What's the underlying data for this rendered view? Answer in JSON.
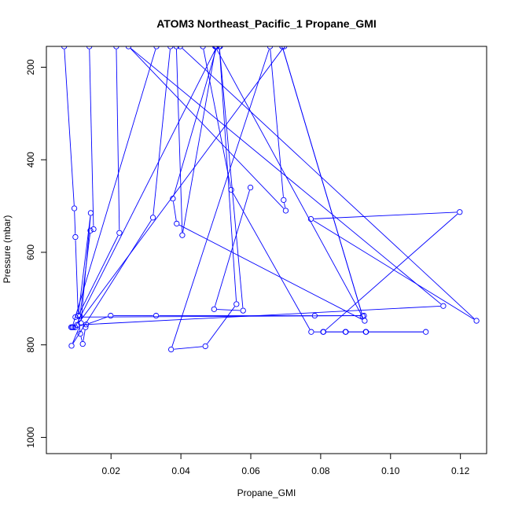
{
  "chart_data": {
    "type": "line",
    "title": "ATOM3 Northeast_Pacific_1 Propane_GMI",
    "xlabel": "Propane_GMI",
    "ylabel": "Pressure (mbar)",
    "xlim": [
      0.0015,
      0.1275
    ],
    "ylim": [
      1035,
      155
    ],
    "y_reversed": true,
    "xticks": [
      0.02,
      0.04,
      0.06,
      0.08,
      0.1,
      0.12
    ],
    "xtick_labels": [
      "0.02",
      "0.04",
      "0.06",
      "0.08",
      "0.10",
      "0.12"
    ],
    "yticks": [
      200,
      400,
      600,
      800,
      1000
    ],
    "ytick_labels": [
      "200",
      "400",
      "600",
      "800",
      "1000"
    ],
    "grid": false,
    "legend": "none",
    "series_color": "#0000ff",
    "series": [
      {
        "x": [
          0.0066,
          0.0095,
          0.0098,
          0.0106,
          0.0112,
          0.0119,
          0.0127,
          0.0129,
          0.0199,
          0.0329,
          0.0783,
          0.0924,
          0.0098,
          0.0111,
          0.0141,
          0.015,
          0.0138
        ],
        "y": [
          155,
          505,
          567,
          737,
          776,
          798,
          762,
          756,
          737,
          737,
          737,
          737,
          740,
          738,
          553,
          550,
          155
        ]
      },
      {
        "x": [
          0.0215,
          0.0224,
          0.0106,
          0.0142,
          0.0114,
          0.0087,
          0.032,
          0.037
        ],
        "y": [
          155,
          558,
          737,
          515,
          753,
          802,
          525,
          155
        ]
      },
      {
        "x": [
          0.033,
          0.0089,
          0.0086,
          0.0092,
          0.0097,
          0.0503,
          0.0377,
          0.0388,
          0.0926,
          0.0498,
          0.0387,
          0.0404,
          0.05
        ],
        "y": [
          155,
          762,
          762,
          762,
          762,
          155,
          484,
          538,
          748,
          155,
          155,
          563,
          155
        ]
      },
      {
        "x": [
          0.0463,
          0.0544,
          0.0773,
          0.0807,
          0.0872,
          0.0929,
          0.1101,
          0.093,
          0.0871,
          0.0808,
          0.1198,
          0.0772,
          0.1246,
          0.0398,
          0.05,
          0.0512
        ],
        "y": [
          155,
          465,
          772,
          772,
          772,
          772,
          772,
          772,
          772,
          772,
          513,
          528,
          748,
          155,
          155,
          155
        ]
      },
      {
        "x": [
          0.0599,
          0.0495,
          0.0578,
          0.051,
          0.0559,
          0.047,
          0.0372,
          0.0655,
          0.0694,
          0.07,
          0.025,
          0.1151,
          0.0103,
          0.0696
        ],
        "y": [
          460,
          723,
          726,
          155,
          712,
          803,
          810,
          155,
          487,
          510,
          155,
          716,
          757,
          155
        ]
      },
      {
        "x": [
          0.069,
          0.092,
          0.069
        ],
        "y": [
          155,
          738,
          155
        ]
      }
    ]
  }
}
